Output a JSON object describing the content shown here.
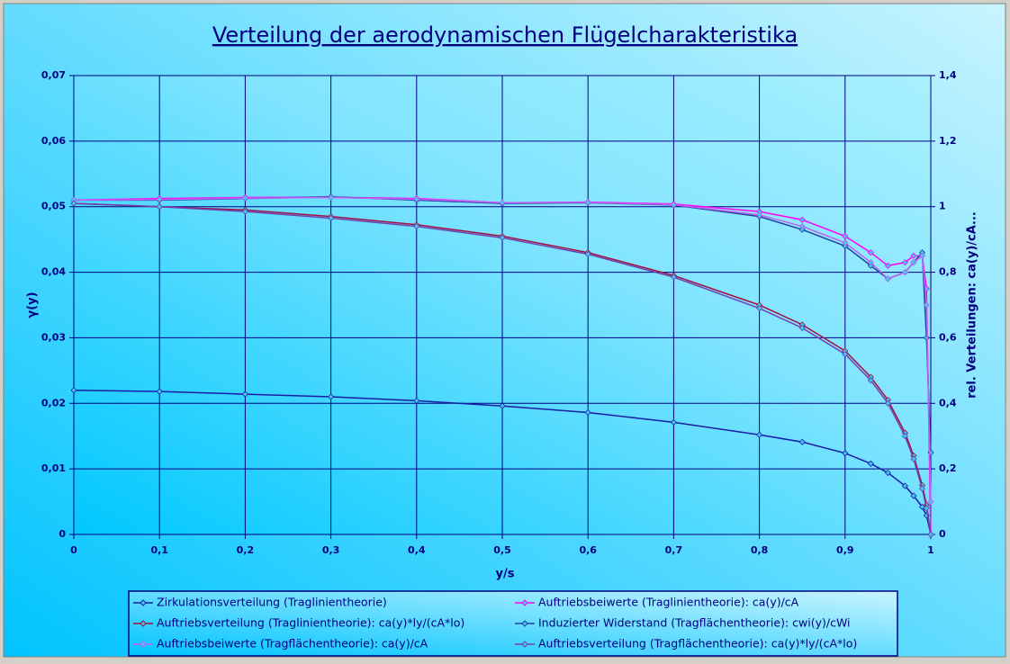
{
  "chart_data": {
    "type": "line",
    "title": "Verteilung der aerodynamischen Flügelcharakteristika",
    "x_label": "y/s",
    "y_label": "γ(y)",
    "y2_label": "rel. Verteilungen: ca(y)/cA...",
    "x": [
      0,
      0.1,
      0.2,
      0.3,
      0.4,
      0.5,
      0.6,
      0.7,
      0.8,
      0.85,
      0.9,
      0.93,
      0.95,
      0.97,
      0.98,
      0.99,
      0.995,
      1
    ],
    "series": [
      {
        "name": "Zirkulationsverteilung (Traglinientheorie)",
        "color": "#1c1ca8",
        "axis": "y",
        "values": [
          0.022,
          0.0218,
          0.0214,
          0.021,
          0.0204,
          0.0196,
          0.0186,
          0.0171,
          0.0152,
          0.0141,
          0.0124,
          0.0108,
          0.0094,
          0.0074,
          0.0059,
          0.0042,
          0.0029,
          0
        ]
      },
      {
        "name": "Auftriebsbeiwerte (Traglinientheorie): ca(y)/cA",
        "color": "#ff00ff",
        "axis": "y2",
        "values": [
          1.02,
          1.025,
          1.028,
          1.029,
          1.025,
          1.012,
          1.014,
          1.008,
          0.985,
          0.96,
          0.91,
          0.86,
          0.82,
          0.83,
          0.85,
          0.85,
          0.75,
          0
        ]
      },
      {
        "name": "Auftriebsverteilung (Traglinientheorie): ca(y)*ly/(cA*lo)",
        "color": "#a01040",
        "axis": "y2",
        "values": [
          1.01,
          1.0,
          0.99,
          0.97,
          0.945,
          0.91,
          0.86,
          0.79,
          0.7,
          0.64,
          0.56,
          0.48,
          0.41,
          0.31,
          0.24,
          0.15,
          0.09,
          0
        ]
      },
      {
        "name": "Induzierter Widerstand (Tragflächentheorie): cwi(y)/cWi",
        "color": "#2040a0",
        "axis": "y2",
        "values": [
          1.02,
          1.02,
          1.025,
          1.03,
          1.02,
          1.01,
          1.012,
          1.005,
          0.97,
          0.93,
          0.88,
          0.82,
          0.78,
          0.8,
          0.83,
          0.86,
          0.6,
          0.25
        ]
      },
      {
        "name": "Auftriebsbeiwerte (Tragflächentheorie): ca(y)/cA",
        "color": "#c060f0",
        "axis": "y2",
        "values": [
          1.02,
          1.022,
          1.026,
          1.028,
          1.023,
          1.012,
          1.013,
          1.006,
          0.975,
          0.94,
          0.89,
          0.83,
          0.78,
          0.8,
          0.83,
          0.85,
          0.7,
          0.1
        ]
      },
      {
        "name": "Auftriebsverteilung (Tragflächentheorie): ca(y)*ly/(cA*lo)",
        "color": "#7040b0",
        "axis": "y2",
        "values": [
          1.01,
          1.0,
          0.985,
          0.965,
          0.94,
          0.905,
          0.855,
          0.785,
          0.69,
          0.63,
          0.55,
          0.47,
          0.4,
          0.3,
          0.23,
          0.14,
          0.08,
          0
        ]
      }
    ],
    "xlim": [
      0,
      1
    ],
    "xticks": [
      0,
      {
        "value": 0.1,
        "label": "0,1"
      },
      {
        "value": 0.2,
        "label": "0,2"
      },
      {
        "value": 0.3,
        "label": "0,3"
      },
      {
        "value": 0.4,
        "label": "0,4"
      },
      {
        "value": 0.5,
        "label": "0,5"
      },
      {
        "value": 0.6,
        "label": "0,6"
      },
      {
        "value": 0.7,
        "label": "0,7"
      },
      {
        "value": 0.8,
        "label": "0,8"
      },
      {
        "value": 0.9,
        "label": "0,9"
      },
      1
    ],
    "ylim": [
      0,
      0.07
    ],
    "yticks": [
      0,
      {
        "value": 0.01,
        "label": "0,01"
      },
      {
        "value": 0.02,
        "label": "0,02"
      },
      {
        "value": 0.03,
        "label": "0,03"
      },
      {
        "value": 0.04,
        "label": "0,04"
      },
      {
        "value": 0.05,
        "label": "0,05"
      },
      {
        "value": 0.06,
        "label": "0,06"
      },
      {
        "value": 0.07,
        "label": "0,07"
      }
    ],
    "y2lim": [
      0,
      1.4
    ],
    "y2ticks": [
      0,
      {
        "value": 0.2,
        "label": "0,2"
      },
      {
        "value": 0.4,
        "label": "0,4"
      },
      {
        "value": 0.6,
        "label": "0,6"
      },
      {
        "value": 0.8,
        "label": "0,8"
      },
      1,
      {
        "value": 1.2,
        "label": "1,2"
      },
      {
        "value": 1.4,
        "label": "1,4"
      }
    ],
    "grid": true,
    "legend": "bottom",
    "marker_color": "#40c8f0"
  }
}
